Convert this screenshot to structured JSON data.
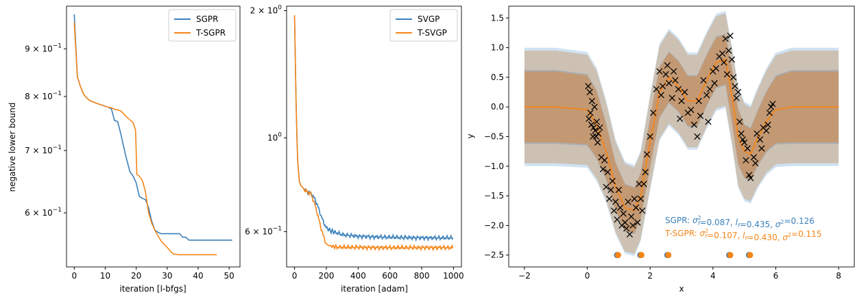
{
  "colors": {
    "blue": "#3b80bb",
    "orange": "#f58518",
    "black": "#000000"
  },
  "chart_data": [
    {
      "type": "line",
      "xlabel": "iteration [l-bfgs]",
      "ylabel": "negative lower bound",
      "yscale": "log",
      "xlim": [
        -2.5,
        53.5
      ],
      "ylim": [
        0.525,
        1.0
      ],
      "xticks": [
        "0",
        "10",
        "20",
        "30",
        "40",
        "50"
      ],
      "yticks": [
        {
          "value": 0.6,
          "base": "6",
          "mant": "10",
          "exp": "−1"
        },
        {
          "value": 0.7,
          "base": "7",
          "mant": "10",
          "exp": "−1"
        },
        {
          "value": 0.8,
          "base": "8",
          "mant": "10",
          "exp": "−1"
        },
        {
          "value": 0.9,
          "base": "9",
          "mant": "10",
          "exp": "−1"
        }
      ],
      "legend_position": "top-right",
      "series": [
        {
          "name": "SGPR",
          "color": "#3b80bb",
          "x": [
            0,
            1,
            2,
            3,
            4,
            5,
            7,
            9,
            11,
            12,
            13,
            14,
            15,
            16,
            17,
            18,
            19,
            20,
            21,
            22,
            23,
            24,
            25,
            26,
            27,
            28,
            30,
            32,
            34,
            35,
            36,
            37,
            40,
            45,
            51
          ],
          "y": [
            0.98,
            0.84,
            0.82,
            0.805,
            0.797,
            0.792,
            0.787,
            0.783,
            0.779,
            0.776,
            0.754,
            0.752,
            0.73,
            0.705,
            0.683,
            0.664,
            0.657,
            0.646,
            0.625,
            0.622,
            0.62,
            0.608,
            0.588,
            0.575,
            0.572,
            0.57,
            0.57,
            0.57,
            0.57,
            0.565,
            0.565,
            0.561,
            0.561,
            0.561,
            0.561
          ]
        },
        {
          "name": "T-SGPR",
          "color": "#f58518",
          "x": [
            0,
            1,
            2,
            3,
            4,
            5,
            7,
            9,
            11,
            12,
            13,
            14,
            15,
            16,
            17,
            18,
            19,
            19.8,
            20.2,
            21,
            22,
            23,
            24,
            25,
            26,
            27,
            28,
            29,
            30,
            31,
            32,
            34,
            35,
            37,
            40,
            46
          ],
          "y": [
            0.96,
            0.84,
            0.82,
            0.805,
            0.797,
            0.792,
            0.787,
            0.783,
            0.779,
            0.778,
            0.775,
            0.774,
            0.772,
            0.766,
            0.76,
            0.755,
            0.75,
            0.736,
            0.66,
            0.657,
            0.65,
            0.632,
            0.6,
            0.585,
            0.575,
            0.567,
            0.56,
            0.555,
            0.551,
            0.546,
            0.542,
            0.541,
            0.541,
            0.541,
            0.541,
            0.541
          ]
        }
      ]
    },
    {
      "type": "line",
      "xlabel": "iteration [adam]",
      "ylabel": "",
      "yscale": "log",
      "xlim": [
        -50,
        1050
      ],
      "ylim": [
        0.495,
        2.05
      ],
      "xticks": [
        "0",
        "200",
        "400",
        "600",
        "800",
        "1000"
      ],
      "yticks": [
        {
          "value": 0.6,
          "base": "6",
          "mant": "10",
          "exp": "−1"
        },
        {
          "value": 1.0,
          "base": "",
          "mant": "10",
          "exp": "0"
        },
        {
          "value": 2.0,
          "base": "2",
          "mant": "10",
          "exp": "0"
        }
      ],
      "legend_position": "top-right",
      "series": [
        {
          "name": "SVGP",
          "color": "#3b80bb",
          "x": [
            0,
            5,
            10,
            15,
            20,
            30,
            40,
            50,
            60,
            80,
            100,
            120,
            140,
            160,
            180,
            200,
            230,
            260,
            300,
            400,
            500,
            600,
            700,
            800,
            900,
            1000
          ],
          "y": [
            1.95,
            1.5,
            1.2,
            1.0,
            0.88,
            0.79,
            0.77,
            0.765,
            0.755,
            0.745,
            0.74,
            0.725,
            0.7,
            0.665,
            0.635,
            0.612,
            0.602,
            0.597,
            0.59,
            0.585,
            0.583,
            0.582,
            0.581,
            0.58,
            0.58,
            0.58
          ]
        },
        {
          "name": "T-SVGP",
          "color": "#f58518",
          "x": [
            0,
            5,
            10,
            15,
            20,
            30,
            40,
            50,
            60,
            80,
            100,
            120,
            140,
            160,
            180,
            200,
            230,
            260,
            300,
            400,
            500,
            600,
            700,
            800,
            900,
            1000
          ],
          "y": [
            1.95,
            1.5,
            1.2,
            1.0,
            0.88,
            0.79,
            0.77,
            0.765,
            0.755,
            0.745,
            0.74,
            0.71,
            0.67,
            0.625,
            0.588,
            0.56,
            0.554,
            0.552,
            0.551,
            0.551,
            0.55,
            0.55,
            0.55,
            0.55,
            0.55,
            0.55
          ]
        }
      ]
    },
    {
      "type": "scatter",
      "xlabel": "x",
      "ylabel": "y",
      "xlim": [
        -2.5,
        8.5
      ],
      "ylim": [
        -2.7,
        1.7
      ],
      "xticks": [
        "−2",
        "0",
        "2",
        "4",
        "6",
        "8"
      ],
      "yticks": [
        "−2.5",
        "−2.0",
        "−1.5",
        "−1.0",
        "−0.5",
        "0.0",
        "0.5",
        "1.0",
        "1.5"
      ],
      "annotation_sgpr": "SGPR: σ²_f=0.087, l_f=0.435, σ²=0.126",
      "annotation_tsgpr": "T-SGPR: σ²_f=0.107, l_f=0.430, σ²=0.115",
      "mean_x": [
        -2,
        -1,
        0,
        0.3,
        0.6,
        0.9,
        1.2,
        1.5,
        1.7,
        2.0,
        2.3,
        2.6,
        2.9,
        3.2,
        3.5,
        3.8,
        4.1,
        4.4,
        4.6,
        4.8,
        5.0,
        5.2,
        5.4,
        5.7,
        6.0,
        6.5,
        7,
        8
      ],
      "mean_y": [
        0,
        0,
        -0.05,
        -0.3,
        -0.75,
        -1.35,
        -1.7,
        -1.75,
        -1.5,
        -0.6,
        0.25,
        0.5,
        0.35,
        0.1,
        0.1,
        0.45,
        0.75,
        0.8,
        0.2,
        -0.5,
        -0.75,
        -0.8,
        -0.55,
        -0.25,
        -0.05,
        0,
        0,
        0
      ],
      "inner_band_halfwidth": [
        0.6,
        0.6,
        0.58,
        0.56,
        0.46,
        0.4,
        0.39,
        0.38,
        0.38,
        0.41,
        0.42,
        0.42,
        0.42,
        0.42,
        0.42,
        0.42,
        0.42,
        0.42,
        0.44,
        0.46,
        0.44,
        0.43,
        0.45,
        0.5,
        0.56,
        0.6,
        0.6,
        0.6
      ],
      "outer_band_halfwidth": [
        0.95,
        0.95,
        0.93,
        0.91,
        0.82,
        0.76,
        0.74,
        0.73,
        0.73,
        0.77,
        0.78,
        0.78,
        0.78,
        0.78,
        0.78,
        0.78,
        0.78,
        0.78,
        0.8,
        0.82,
        0.8,
        0.79,
        0.81,
        0.86,
        0.92,
        0.95,
        0.95,
        0.95
      ],
      "inducing_points_x": [
        0.98,
        1.72,
        2.58,
        4.55,
        5.18
      ],
      "inducing_points_y": -2.5,
      "observations_x": [
        0.03,
        0.05,
        0.08,
        0.1,
        0.13,
        0.15,
        0.18,
        0.2,
        0.23,
        0.25,
        0.28,
        0.3,
        0.33,
        0.35,
        0.4,
        0.45,
        0.5,
        0.55,
        0.6,
        0.65,
        0.7,
        0.75,
        0.8,
        0.85,
        0.9,
        0.95,
        1.0,
        1.05,
        1.1,
        1.15,
        1.2,
        1.25,
        1.3,
        1.35,
        1.4,
        1.45,
        1.5,
        1.55,
        1.6,
        1.65,
        1.7,
        1.75,
        1.8,
        1.85,
        1.9,
        2.0,
        2.1,
        2.2,
        2.3,
        2.35,
        2.4,
        2.5,
        2.55,
        2.6,
        2.7,
        2.75,
        2.8,
        2.9,
        2.95,
        3.0,
        3.1,
        3.2,
        3.3,
        3.4,
        3.5,
        3.55,
        3.6,
        3.7,
        3.8,
        3.85,
        3.9,
        4.0,
        4.05,
        4.1,
        4.2,
        4.3,
        4.35,
        4.4,
        4.45,
        4.5,
        4.55,
        4.6,
        4.65,
        4.7,
        4.75,
        4.8,
        4.85,
        4.9,
        4.95,
        5.0,
        5.05,
        5.1,
        5.15,
        5.2,
        5.3,
        5.35,
        5.4,
        5.5,
        5.55,
        5.6,
        5.7,
        5.75,
        5.8,
        5.85,
        5.9
      ],
      "observations_y": [
        0.35,
        -0.2,
        0.25,
        -0.1,
        -0.3,
        0.1,
        -0.5,
        -0.35,
        0.0,
        -0.4,
        -0.5,
        -0.25,
        -0.6,
        -0.45,
        -0.35,
        -0.85,
        -1.05,
        -0.9,
        -1.35,
        -1.1,
        -1.55,
        -1.4,
        -1.25,
        -1.75,
        -1.6,
        -1.9,
        -1.4,
        -1.7,
        -2.0,
        -1.8,
        -1.95,
        -2.05,
        -1.6,
        -2.15,
        -1.85,
        -2.0,
        -1.55,
        -1.7,
        -1.95,
        -1.3,
        -1.55,
        -1.75,
        -1.3,
        -1.1,
        -0.8,
        -0.5,
        -0.1,
        0.3,
        0.6,
        0.2,
        0.35,
        0.55,
        0.7,
        0.4,
        0.15,
        0.6,
        0.45,
        0.3,
        -0.2,
        0.1,
        0.25,
        -0.1,
        -0.05,
        -0.3,
        -0.5,
        0.1,
        -0.15,
        0.45,
        0.2,
        -0.25,
        0.3,
        0.6,
        0.4,
        0.65,
        0.85,
        0.9,
        0.75,
        1.15,
        0.55,
        0.95,
        1.2,
        0.8,
        0.5,
        0.35,
        0.15,
        0.25,
        -0.25,
        -0.45,
        -0.55,
        -0.6,
        -0.9,
        -0.7,
        -1.15,
        -1.2,
        -0.85,
        -0.95,
        -0.45,
        -0.55,
        -0.7,
        -0.35,
        -0.4,
        -0.3,
        -0.1,
        0.0,
        0.05
      ]
    }
  ]
}
